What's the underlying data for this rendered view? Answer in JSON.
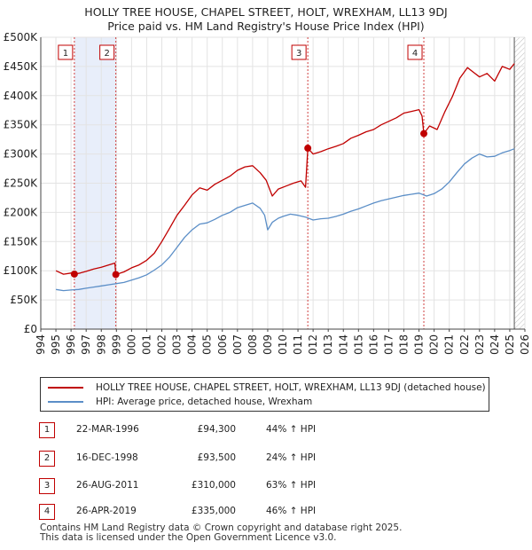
{
  "chart_data": {
    "type": "line",
    "title": "HOLLY TREE HOUSE, CHAPEL STREET, HOLT, WREXHAM, LL13 9DJ",
    "subtitle": "Price paid vs. HM Land Registry's House Price Index (HPI)",
    "xlim": [
      1994,
      2026
    ],
    "ylim": [
      0,
      500000
    ],
    "x_ticks": [
      "1994",
      "1995",
      "1996",
      "1997",
      "1998",
      "1999",
      "2000",
      "2001",
      "2002",
      "2003",
      "2004",
      "2005",
      "2006",
      "2007",
      "2008",
      "2009",
      "2010",
      "2011",
      "2012",
      "2013",
      "2014",
      "2015",
      "2016",
      "2017",
      "2018",
      "2019",
      "2020",
      "2021",
      "2022",
      "2023",
      "2024",
      "2025",
      "2026"
    ],
    "y_ticks": [
      {
        "value": 0,
        "label": "£0"
      },
      {
        "value": 50000,
        "label": "£50K"
      },
      {
        "value": 100000,
        "label": "£100K"
      },
      {
        "value": 150000,
        "label": "£150K"
      },
      {
        "value": 200000,
        "label": "£200K"
      },
      {
        "value": 250000,
        "label": "£250K"
      },
      {
        "value": 300000,
        "label": "£300K"
      },
      {
        "value": 350000,
        "label": "£350K"
      },
      {
        "value": 400000,
        "label": "£400K"
      },
      {
        "value": 450000,
        "label": "£450K"
      },
      {
        "value": 500000,
        "label": "£500K"
      }
    ],
    "ownership_shading": [
      [
        1996.22,
        1998.96
      ]
    ],
    "series": [
      {
        "name": "HOLLY TREE HOUSE, CHAPEL STREET, HOLT, WREXHAM, LL13 9DJ (detached house)",
        "color": "#c00000",
        "x": [
          1995.0,
          1995.5,
          1996.0,
          1996.22,
          1996.6,
          1997.0,
          1997.5,
          1998.0,
          1998.5,
          1998.9,
          1998.96,
          1999.5,
          2000.0,
          2000.5,
          2001.0,
          2001.5,
          2002.0,
          2002.5,
          2003.0,
          2003.5,
          2004.0,
          2004.5,
          2005.0,
          2005.5,
          2006.0,
          2006.5,
          2007.0,
          2007.5,
          2008.0,
          2008.5,
          2008.9,
          2009.3,
          2009.7,
          2010.2,
          2010.7,
          2011.2,
          2011.5,
          2011.65,
          2012.0,
          2012.5,
          2013.0,
          2013.5,
          2014.0,
          2014.5,
          2015.0,
          2015.5,
          2016.0,
          2016.5,
          2017.0,
          2017.5,
          2018.0,
          2018.5,
          2019.0,
          2019.2,
          2019.32,
          2019.7,
          2020.2,
          2020.7,
          2021.2,
          2021.7,
          2022.2,
          2022.6,
          2023.0,
          2023.5,
          2024.0,
          2024.5,
          2025.0,
          2025.3
        ],
        "y": [
          100000,
          94000,
          96000,
          94300,
          96000,
          99000,
          103000,
          106000,
          110000,
          113000,
          93500,
          98000,
          105000,
          110000,
          118000,
          130000,
          150000,
          172000,
          195000,
          212000,
          230000,
          242000,
          238000,
          248000,
          255000,
          262000,
          272000,
          278000,
          280000,
          268000,
          255000,
          228000,
          240000,
          245000,
          250000,
          254000,
          243000,
          310000,
          300000,
          304000,
          309000,
          313000,
          318000,
          327000,
          332000,
          338000,
          342000,
          350000,
          356000,
          362000,
          370000,
          373000,
          376000,
          365000,
          335000,
          348000,
          342000,
          372000,
          398000,
          430000,
          448000,
          440000,
          432000,
          438000,
          425000,
          450000,
          445000,
          455000
        ]
      },
      {
        "name": "HPI: Average price, detached house, Wrexham",
        "color": "#5b8ec7",
        "x": [
          1995.0,
          1995.5,
          1996.0,
          1996.5,
          1997.0,
          1997.5,
          1998.0,
          1998.5,
          1999.0,
          1999.5,
          2000.0,
          2000.5,
          2001.0,
          2001.5,
          2002.0,
          2002.5,
          2003.0,
          2003.5,
          2004.0,
          2004.5,
          2005.0,
          2005.5,
          2006.0,
          2006.5,
          2007.0,
          2007.5,
          2008.0,
          2008.5,
          2008.8,
          2009.0,
          2009.3,
          2009.7,
          2010.0,
          2010.5,
          2011.0,
          2011.5,
          2012.0,
          2012.5,
          2013.0,
          2013.5,
          2014.0,
          2014.5,
          2015.0,
          2015.5,
          2016.0,
          2016.5,
          2017.0,
          2017.5,
          2018.0,
          2018.5,
          2019.0,
          2019.5,
          2020.0,
          2020.5,
          2021.0,
          2021.5,
          2022.0,
          2022.5,
          2023.0,
          2023.5,
          2024.0,
          2024.5,
          2025.0,
          2025.3
        ],
        "y": [
          68000,
          66000,
          67000,
          68000,
          70000,
          72000,
          74000,
          76000,
          78000,
          80000,
          84000,
          88000,
          93000,
          101000,
          110000,
          123000,
          140000,
          157000,
          170000,
          180000,
          182000,
          188000,
          195000,
          200000,
          208000,
          212000,
          216000,
          207000,
          195000,
          170000,
          183000,
          190000,
          193000,
          197000,
          195000,
          192000,
          187000,
          189000,
          190000,
          193000,
          197000,
          202000,
          206000,
          211000,
          216000,
          220000,
          223000,
          226000,
          229000,
          231000,
          233000,
          228000,
          232000,
          240000,
          252000,
          268000,
          283000,
          293000,
          300000,
          295000,
          296000,
          302000,
          306000,
          309000
        ]
      }
    ],
    "sales": [
      {
        "id": "1",
        "x": 1996.22,
        "price": 94300
      },
      {
        "id": "2",
        "x": 1998.96,
        "price": 93500
      },
      {
        "id": "3",
        "x": 2011.65,
        "price": 310000
      },
      {
        "id": "4",
        "x": 2019.32,
        "price": 335000
      }
    ],
    "latest_data_x": 2025.3
  },
  "legend": {
    "property": "HOLLY TREE HOUSE, CHAPEL STREET, HOLT, WREXHAM, LL13 9DJ (detached house)",
    "hpi": "HPI: Average price, detached house, Wrexham"
  },
  "transactions": [
    {
      "id": "1",
      "date": "22-MAR-1996",
      "price": "£94,300",
      "hpi": "44% ↑ HPI"
    },
    {
      "id": "2",
      "date": "16-DEC-1998",
      "price": "£93,500",
      "hpi": "24% ↑ HPI"
    },
    {
      "id": "3",
      "date": "26-AUG-2011",
      "price": "£310,000",
      "hpi": "63% ↑ HPI"
    },
    {
      "id": "4",
      "date": "26-APR-2019",
      "price": "£335,000",
      "hpi": "46% ↑ HPI"
    }
  ],
  "footer": {
    "line1": "Contains HM Land Registry data © Crown copyright and database right 2025.",
    "line2": "This data is licensed under the Open Government Licence v3.0."
  },
  "colors": {
    "property_line": "#c00000",
    "hpi_line": "#5b8ec7",
    "shade": "#e8eefa",
    "badge_border": "#c00000"
  }
}
